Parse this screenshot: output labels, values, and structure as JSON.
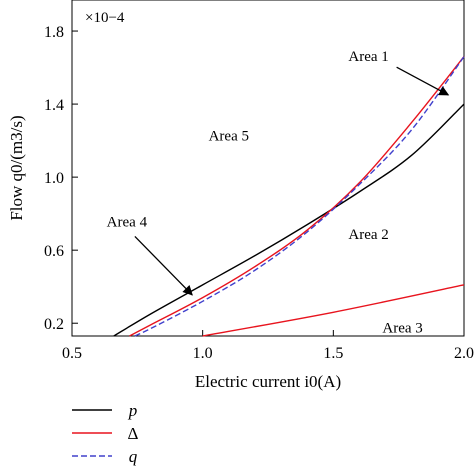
{
  "chart_data": {
    "type": "line",
    "xlabel": "Electric current i0(A)",
    "ylabel": "Flow q0/(m3/s)",
    "multiplier": "×10−4",
    "xlim": [
      0.5,
      2.0
    ],
    "ylim": [
      0.13,
      1.97
    ],
    "xticks": [
      0.5,
      1.0,
      1.5,
      2.0
    ],
    "xtick_labels": [
      "0.5",
      "1.0",
      "1.5",
      "2.0"
    ],
    "yticks": [
      0.2,
      0.6,
      1.0,
      1.4,
      1.8
    ],
    "ytick_labels": [
      "0.2",
      "0.6",
      "1.0",
      "1.4",
      "1.8"
    ],
    "grid": false,
    "legend_position": "bottom-left",
    "series": [
      {
        "name": "p",
        "color": "#000000",
        "dash": "solid",
        "x": [
          0.66,
          0.8,
          1.0,
          1.2,
          1.4,
          1.6,
          1.8,
          2.0
        ],
        "y": [
          0.13,
          0.25,
          0.41,
          0.57,
          0.74,
          0.92,
          1.12,
          1.4
        ]
      },
      {
        "name": "Δ",
        "color": "#e8141e",
        "dash": "solid",
        "x": [
          0.72,
          0.8,
          1.0,
          1.2,
          1.4,
          1.6,
          1.8,
          2.0
        ],
        "y": [
          0.13,
          0.19,
          0.34,
          0.51,
          0.71,
          0.97,
          1.3,
          1.66
        ]
      },
      {
        "name": "q",
        "color": "#4040cc",
        "dash": "dashed",
        "x": [
          0.74,
          0.8,
          1.0,
          1.2,
          1.4,
          1.6,
          1.8,
          2.0
        ],
        "y": [
          0.13,
          0.17,
          0.32,
          0.49,
          0.7,
          0.96,
          1.26,
          1.66
        ]
      },
      {
        "name": "",
        "color": "#e8141e",
        "dash": "solid",
        "x": [
          1.0,
          1.5,
          2.0
        ],
        "y": [
          0.13,
          0.26,
          0.41
        ]
      }
    ],
    "annotations": [
      {
        "text": "Area 1",
        "x": 1.635,
        "y": 1.635,
        "arrow_to": [
          1.94,
          1.45
        ]
      },
      {
        "text": "Area 2",
        "x": 1.635,
        "y": 0.66
      },
      {
        "text": "Area 3",
        "x": 1.765,
        "y": 0.15
      },
      {
        "text": "Area 4",
        "x": 0.71,
        "y": 0.73,
        "arrow_to": [
          0.96,
          0.355
        ]
      },
      {
        "text": "Area 5",
        "x": 1.1,
        "y": 1.2
      }
    ]
  }
}
